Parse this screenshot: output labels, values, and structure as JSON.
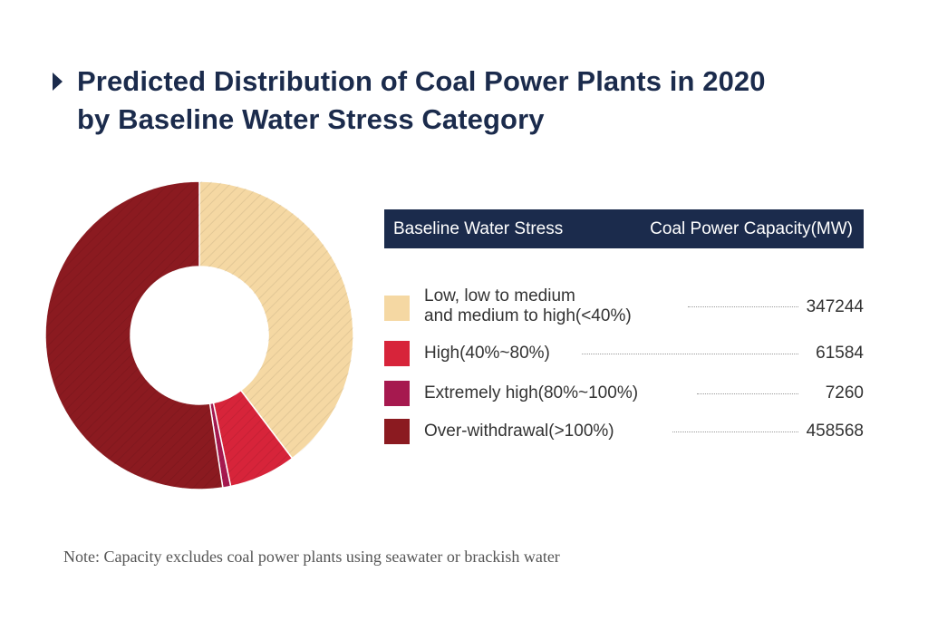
{
  "title": {
    "line1": "Predicted Distribution of Coal Power Plants in 2020",
    "line2": "by Baseline Water Stress Category"
  },
  "table_header": {
    "col1": "Baseline Water Stress",
    "col2": "Coal Power Capacity(MW)"
  },
  "note": "Note: Capacity excludes coal power plants using seawater or brackish water",
  "chart_data": {
    "type": "pie",
    "donut": true,
    "categories": [
      "Low, low to medium and medium to high(<40%)",
      "High(40%~80%)",
      "Extremely high(80%~100%)",
      "Over-withdrawal(>100%)"
    ],
    "values": [
      347244,
      61584,
      7260,
      458568
    ],
    "colors": [
      "#f5d8a3",
      "#d7243a",
      "#a6194f",
      "#8b1a20"
    ],
    "legend": [
      {
        "label_line1": "Low, low to medium",
        "label_line2": "and medium to high(<40%)",
        "value": "347244",
        "color": "#f5d8a3"
      },
      {
        "label_line1": "High(40%~80%)",
        "label_line2": "",
        "value": "61584",
        "color": "#d7243a"
      },
      {
        "label_line1": "Extremely high(80%~100%)",
        "label_line2": "",
        "value": "7260",
        "color": "#a6194f"
      },
      {
        "label_line1": "Over-withdrawal(>100%)",
        "label_line2": "",
        "value": "458568",
        "color": "#8b1a20"
      }
    ]
  }
}
